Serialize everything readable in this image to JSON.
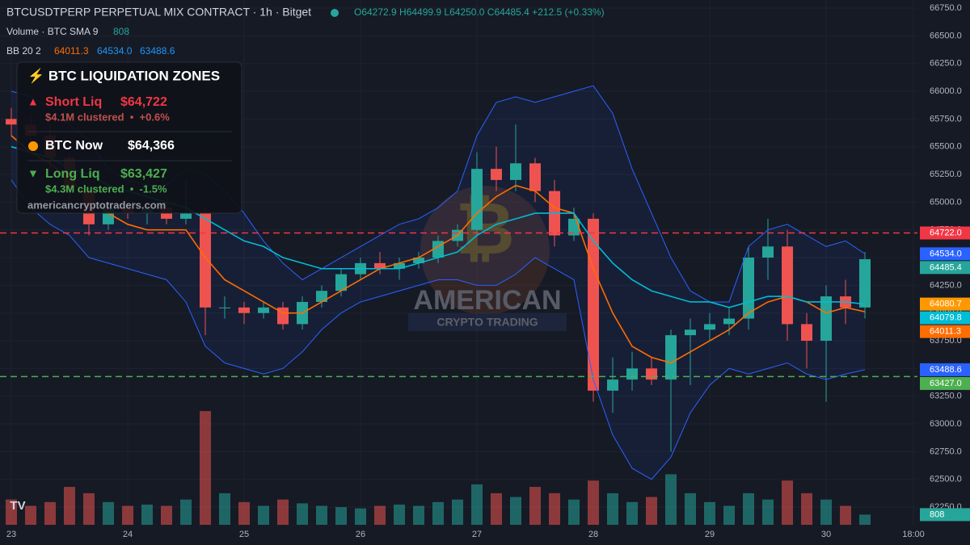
{
  "chart_data": {
    "type": "candlestick",
    "header": {
      "symbol": "BTCUSDTPERP PERPETUAL MIX CONTRACT · 1h · Bitget",
      "ohlc": "O64272.9 H64499.9 L64250.0 C64485.4 +212.5 (+0.33%)",
      "volume_legend": "Volume · BTC SMA 9",
      "bb_legend": "BB 20 2",
      "bb_values": [
        "64011.3",
        "64534.0",
        "63488.6"
      ]
    },
    "card": {
      "title": "⚡ BTC LIQUIDATION ZONES",
      "short_name": "Short Liq",
      "short_price": "$64,722",
      "short_note": "$4.1M clustered  •  +0.6%",
      "now_name": "BTC Now",
      "now_price": "$64,366",
      "long_name": "Long Liq",
      "long_price": "$63,427",
      "long_note": "$4.3M clustered  •  -1.5%",
      "site": "americancryptotraders.com"
    },
    "watermark": {
      "line1": "AMERICAN",
      "line2": "CRYPTO TRADING"
    },
    "x": [
      0,
      4,
      8,
      12,
      16,
      20,
      24,
      28,
      32,
      36,
      40,
      44,
      48,
      52,
      56,
      60,
      64,
      68,
      72,
      76,
      80,
      84,
      88,
      92,
      96,
      100,
      104,
      108,
      112,
      116,
      120,
      124,
      128,
      132,
      136,
      140,
      144,
      148,
      152,
      156,
      160,
      164,
      168,
      172,
      176
    ],
    "open": [
      65750,
      65700,
      65600,
      65400,
      65100,
      64800,
      64950,
      64900,
      64950,
      64850,
      64900,
      64050,
      64050,
      64000,
      64050,
      63900,
      64100,
      64200,
      64350,
      64450,
      64400,
      64450,
      64500,
      64650,
      64750,
      65300,
      65200,
      65350,
      65100,
      64700,
      64850,
      63300,
      63400,
      63500,
      63400,
      63800,
      63850,
      63900,
      63950,
      64500,
      64600,
      63900,
      63750,
      64150,
      64050
    ],
    "high": [
      65850,
      65800,
      65700,
      65450,
      65150,
      65000,
      65050,
      65000,
      65050,
      65200,
      64950,
      64150,
      64100,
      64100,
      64100,
      64150,
      64250,
      64400,
      64500,
      64550,
      64500,
      64550,
      64700,
      64800,
      65450,
      65500,
      65700,
      65400,
      65200,
      64950,
      64900,
      63600,
      63650,
      63600,
      63850,
      63950,
      64000,
      64050,
      64600,
      64850,
      64750,
      64000,
      64250,
      64300,
      64550
    ],
    "low": [
      65600,
      65500,
      65300,
      65000,
      64700,
      64750,
      64850,
      64800,
      64800,
      64800,
      63800,
      63950,
      63900,
      63950,
      63850,
      63850,
      64050,
      64150,
      64300,
      64350,
      64300,
      64400,
      64450,
      64600,
      64700,
      65100,
      65100,
      65000,
      64600,
      64650,
      63200,
      63100,
      63300,
      63350,
      62750,
      63350,
      63750,
      63800,
      63850,
      64300,
      63750,
      63500,
      63200,
      63900,
      63950
    ],
    "close": [
      65700,
      65600,
      65400,
      65100,
      64800,
      64950,
      64900,
      64950,
      64850,
      64900,
      64050,
      64050,
      64000,
      64050,
      63900,
      64100,
      64200,
      64350,
      64450,
      64400,
      64450,
      64500,
      64650,
      64750,
      65300,
      65200,
      65350,
      65100,
      64700,
      64850,
      63300,
      63400,
      63500,
      63400,
      63800,
      63850,
      63900,
      63950,
      64500,
      64600,
      63900,
      63750,
      64150,
      64050,
      64485.4
    ],
    "volume": [
      2000,
      1500,
      1800,
      3000,
      2500,
      1800,
      1500,
      1600,
      1500,
      2000,
      9000,
      2500,
      1800,
      1500,
      2000,
      1700,
      1500,
      1400,
      1300,
      1500,
      1600,
      1500,
      1800,
      2000,
      3200,
      2500,
      2200,
      3000,
      2500,
      2000,
      3500,
      2500,
      1800,
      2200,
      4000,
      2500,
      1800,
      1500,
      2500,
      2000,
      3500,
      2500,
      2000,
      1500,
      808
    ],
    "vlim": [
      0,
      11500
    ],
    "up_color": "#26a69a",
    "down_color": "#ef5350",
    "lines": [
      {
        "color": "#2962ff",
        "values": [
          66000,
          65950,
          65850,
          65700,
          65550,
          65300,
          65200,
          65150,
          65150,
          65300,
          65250,
          65100,
          64900,
          64650,
          64450,
          64300,
          64400,
          64500,
          64600,
          64700,
          64800,
          64850,
          64950,
          65100,
          65600,
          65900,
          65950,
          65900,
          65950,
          66000,
          66050,
          65800,
          65300,
          64900,
          64500,
          64200,
          64100,
          64100,
          64600,
          64750,
          64800,
          64700,
          64600,
          64650,
          64534
        ]
      },
      {
        "color": "#2962ff",
        "values": [
          65200,
          64950,
          64800,
          64700,
          64500,
          64450,
          64400,
          64350,
          64300,
          64100,
          63700,
          63550,
          63500,
          63450,
          63500,
          63650,
          63850,
          64000,
          64100,
          64150,
          64200,
          64250,
          64300,
          64300,
          64250,
          64250,
          64350,
          64500,
          64400,
          64300,
          63400,
          62900,
          62600,
          62500,
          62700,
          63100,
          63350,
          63500,
          63450,
          63500,
          63550,
          63450,
          63400,
          63450,
          63488.6
        ]
      },
      {
        "color": "#ff6d00",
        "values": [
          65600,
          65450,
          65350,
          65200,
          65050,
          64900,
          64800,
          64750,
          64750,
          64750,
          64500,
          64300,
          64200,
          64100,
          64000,
          64000,
          64100,
          64200,
          64300,
          64400,
          64450,
          64500,
          64600,
          64700,
          64900,
          65050,
          65150,
          65100,
          64950,
          64900,
          64400,
          64000,
          63700,
          63600,
          63550,
          63650,
          63750,
          63850,
          64000,
          64100,
          64150,
          64100,
          64000,
          64050,
          64011.3
        ]
      },
      {
        "color": "#00bcd4",
        "values": [
          65500,
          65450,
          65400,
          65300,
          65250,
          65150,
          65100,
          65050,
          65000,
          64950,
          64850,
          64750,
          64650,
          64600,
          64500,
          64450,
          64400,
          64400,
          64400,
          64400,
          64400,
          64450,
          64500,
          64550,
          64700,
          64800,
          64850,
          64900,
          64900,
          64900,
          64650,
          64450,
          64300,
          64200,
          64150,
          64100,
          64100,
          64050,
          64100,
          64150,
          64150,
          64100,
          64100,
          64100,
          64079.8
        ]
      }
    ],
    "price_labels": [
      {
        "value": 64722,
        "label": "64722.0",
        "color": "#f23645",
        "dash": true
      },
      {
        "value": 64534,
        "label": "64534.0",
        "color": "#2962ff",
        "dash": false
      },
      {
        "value": 64485.4,
        "label": "64485.4",
        "color": "#26a69a",
        "dash": false
      },
      {
        "value": 64080.7,
        "label": "64080.7",
        "color": "#ff9800",
        "dash": false
      },
      {
        "value": 64079.8,
        "label": "64079.8",
        "color": "#00bcd4",
        "dash": false
      },
      {
        "value": 64011.3,
        "label": "64011.3",
        "color": "#ff6d00",
        "dash": false
      },
      {
        "value": 63488.6,
        "label": "63488.6",
        "color": "#2962ff",
        "dash": false
      },
      {
        "value": 63427,
        "label": "63427.0",
        "color": "#4caf50",
        "dash": true
      }
    ],
    "volume_label_color": "#26a69a",
    "xlim": [
      -2.33,
      186.83
    ],
    "ylim": [
      62090,
      66823
    ],
    "xticks": [
      {
        "value": 0,
        "label": "23"
      },
      {
        "value": 24,
        "label": "24"
      },
      {
        "value": 48,
        "label": "25"
      },
      {
        "value": 72,
        "label": "26"
      },
      {
        "value": 96,
        "label": "27"
      },
      {
        "value": 120,
        "label": "28"
      },
      {
        "value": 144,
        "label": "29"
      },
      {
        "value": 168,
        "label": "30"
      },
      {
        "value": 186,
        "label": "18:00"
      }
    ],
    "yticks": [
      {
        "value": 62250,
        "label": "62250.0"
      },
      {
        "value": 62500,
        "label": "62500.0"
      },
      {
        "value": 62750,
        "label": "62750.0"
      },
      {
        "value": 63000,
        "label": "63000.0"
      },
      {
        "value": 63250,
        "label": "63250.0"
      },
      {
        "value": 63500,
        "label": "63500.0"
      },
      {
        "value": 63750,
        "label": "63750.0"
      },
      {
        "value": 64000,
        "label": "64000.0"
      },
      {
        "value": 64250,
        "label": "64250.0"
      },
      {
        "value": 64500,
        "label": "64500.0"
      },
      {
        "value": 64750,
        "label": "64750.0"
      },
      {
        "value": 65000,
        "label": "65000.0"
      },
      {
        "value": 65250,
        "label": "65250.0"
      },
      {
        "value": 65500,
        "label": "65500.0"
      },
      {
        "value": 65750,
        "label": "65750.0"
      },
      {
        "value": 66000,
        "label": "66000.0"
      },
      {
        "value": 66250,
        "label": "66250.0"
      },
      {
        "value": 66500,
        "label": "66500.0"
      },
      {
        "value": 66750,
        "label": "66750.0"
      }
    ],
    "grid": true
  }
}
